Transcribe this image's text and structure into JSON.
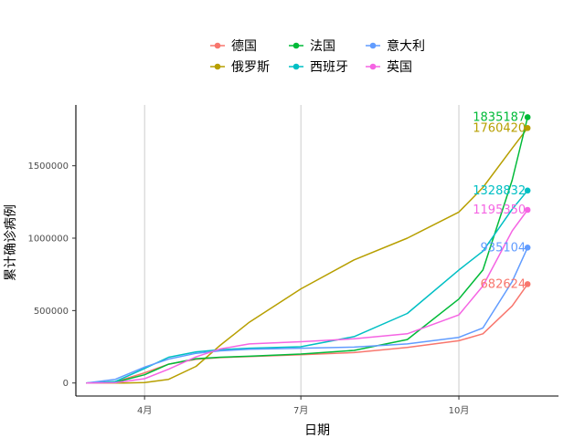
{
  "chart_data": {
    "type": "line",
    "xlabel": "日期",
    "ylabel": "累计确诊病例",
    "x_ticks": [
      {
        "date": "2020-04-01",
        "label": "4月"
      },
      {
        "date": "2020-07-01",
        "label": "7月"
      },
      {
        "date": "2020-10-01",
        "label": "10月"
      }
    ],
    "y_ticks": [
      0,
      500000,
      1000000,
      1500000
    ],
    "xlim": [
      "2020-02-21",
      "2020-11-28"
    ],
    "ylim": [
      -90000,
      1920000
    ],
    "grid": "vertical major lines only",
    "legend_position": "top",
    "series": [
      {
        "name": "德国",
        "color": "#F8766D",
        "end_label": "682624",
        "points": [
          [
            "2020-02-27",
            0
          ],
          [
            "2020-03-15",
            8000
          ],
          [
            "2020-04-01",
            70000
          ],
          [
            "2020-04-15",
            130000
          ],
          [
            "2020-05-01",
            163000
          ],
          [
            "2020-05-15",
            175000
          ],
          [
            "2020-06-01",
            183000
          ],
          [
            "2020-07-01",
            195000
          ],
          [
            "2020-08-01",
            210000
          ],
          [
            "2020-09-01",
            245000
          ],
          [
            "2020-10-01",
            292000
          ],
          [
            "2020-10-15",
            340000
          ],
          [
            "2020-11-01",
            532000
          ],
          [
            "2020-11-10",
            682624
          ]
        ]
      },
      {
        "name": "俄罗斯",
        "color": "#B79F00",
        "end_label": "1760420",
        "points": [
          [
            "2020-02-27",
            0
          ],
          [
            "2020-03-20",
            300
          ],
          [
            "2020-04-01",
            3000
          ],
          [
            "2020-04-15",
            25000
          ],
          [
            "2020-05-01",
            115000
          ],
          [
            "2020-05-15",
            260000
          ],
          [
            "2020-06-01",
            420000
          ],
          [
            "2020-07-01",
            650000
          ],
          [
            "2020-08-01",
            850000
          ],
          [
            "2020-09-01",
            1000000
          ],
          [
            "2020-10-01",
            1180000
          ],
          [
            "2020-10-15",
            1350000
          ],
          [
            "2020-11-01",
            1620000
          ],
          [
            "2020-11-10",
            1760420
          ]
        ]
      },
      {
        "name": "法国",
        "color": "#00BA38",
        "end_label": "1835187",
        "points": [
          [
            "2020-02-27",
            0
          ],
          [
            "2020-03-15",
            5000
          ],
          [
            "2020-04-01",
            57000
          ],
          [
            "2020-04-15",
            130000
          ],
          [
            "2020-05-01",
            168000
          ],
          [
            "2020-05-15",
            178000
          ],
          [
            "2020-06-01",
            185000
          ],
          [
            "2020-07-01",
            200000
          ],
          [
            "2020-08-01",
            225000
          ],
          [
            "2020-09-01",
            300000
          ],
          [
            "2020-10-01",
            580000
          ],
          [
            "2020-10-15",
            780000
          ],
          [
            "2020-11-01",
            1400000
          ],
          [
            "2020-11-10",
            1835187
          ]
        ]
      },
      {
        "name": "西班牙",
        "color": "#00BFC4",
        "end_label": "1328832",
        "points": [
          [
            "2020-02-27",
            0
          ],
          [
            "2020-03-15",
            10000
          ],
          [
            "2020-04-01",
            100000
          ],
          [
            "2020-04-15",
            178000
          ],
          [
            "2020-05-01",
            215000
          ],
          [
            "2020-05-15",
            230000
          ],
          [
            "2020-06-01",
            240000
          ],
          [
            "2020-07-01",
            250000
          ],
          [
            "2020-08-01",
            320000
          ],
          [
            "2020-09-01",
            480000
          ],
          [
            "2020-10-01",
            780000
          ],
          [
            "2020-10-15",
            910000
          ],
          [
            "2020-11-01",
            1200000
          ],
          [
            "2020-11-10",
            1328832
          ]
        ]
      },
      {
        "name": "意大利",
        "color": "#619CFF",
        "end_label": "935104",
        "points": [
          [
            "2020-02-27",
            0
          ],
          [
            "2020-03-15",
            25000
          ],
          [
            "2020-04-01",
            110000
          ],
          [
            "2020-04-15",
            165000
          ],
          [
            "2020-05-01",
            205000
          ],
          [
            "2020-05-15",
            222000
          ],
          [
            "2020-06-01",
            233000
          ],
          [
            "2020-07-01",
            240000
          ],
          [
            "2020-08-01",
            248000
          ],
          [
            "2020-09-01",
            270000
          ],
          [
            "2020-10-01",
            315000
          ],
          [
            "2020-10-15",
            380000
          ],
          [
            "2020-11-01",
            700000
          ],
          [
            "2020-11-10",
            935104
          ]
        ]
      },
      {
        "name": "英国",
        "color": "#F564E3",
        "end_label": "1195350",
        "points": [
          [
            "2020-02-27",
            0
          ],
          [
            "2020-03-15",
            2000
          ],
          [
            "2020-04-01",
            30000
          ],
          [
            "2020-04-15",
            95000
          ],
          [
            "2020-05-01",
            180000
          ],
          [
            "2020-05-15",
            235000
          ],
          [
            "2020-06-01",
            270000
          ],
          [
            "2020-07-01",
            285000
          ],
          [
            "2020-08-01",
            305000
          ],
          [
            "2020-09-01",
            340000
          ],
          [
            "2020-10-01",
            470000
          ],
          [
            "2020-10-15",
            670000
          ],
          [
            "2020-11-01",
            1050000
          ],
          [
            "2020-11-10",
            1195350
          ]
        ]
      }
    ]
  }
}
